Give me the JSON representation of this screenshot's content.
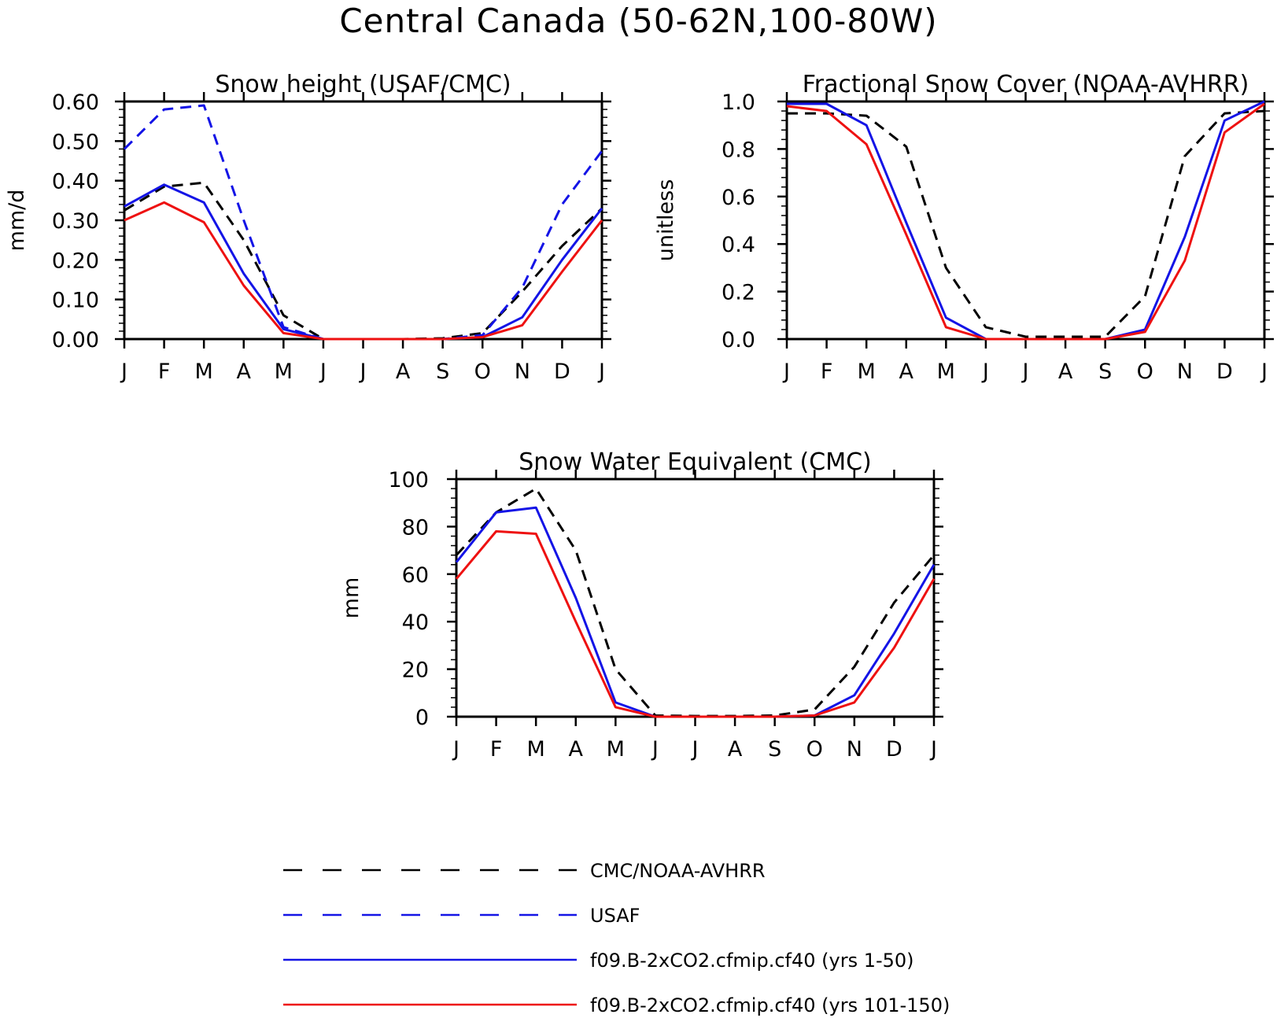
{
  "page_title": "Central Canada (50-62N,100-80W)",
  "months": [
    "J",
    "F",
    "M",
    "A",
    "M",
    "J",
    "J",
    "A",
    "S",
    "O",
    "N",
    "D",
    "J"
  ],
  "colors": {
    "obs": "#000000",
    "usaf": "#1414e6",
    "yrs1_50": "#1414e6",
    "yrs101_150": "#ee1111"
  },
  "legend": [
    {
      "key": "obs",
      "label": "CMC/NOAA-AVHRR",
      "style": "dashed"
    },
    {
      "key": "usaf",
      "label": "USAF",
      "style": "dashed"
    },
    {
      "key": "yrs1_50",
      "label": "f09.B-2xCO2.cfmip.cf40 (yrs 1-50)",
      "style": "solid"
    },
    {
      "key": "yrs101_150",
      "label": "f09.B-2xCO2.cfmip.cf40 (yrs 101-150)",
      "style": "solid"
    }
  ],
  "chart_data": [
    {
      "type": "line",
      "title": "Snow height (USAF/CMC)",
      "ylabel": "mm/d",
      "ylim": [
        0,
        0.6
      ],
      "yticks": [
        "0.00",
        "0.10",
        "0.20",
        "0.30",
        "0.40",
        "0.50",
        "0.60"
      ],
      "x": [
        "J",
        "F",
        "M",
        "A",
        "M",
        "J",
        "J",
        "A",
        "S",
        "O",
        "N",
        "D",
        "J"
      ],
      "series": [
        {
          "key": "obs",
          "style": "dashed",
          "values": [
            0.325,
            0.385,
            0.395,
            0.25,
            0.06,
            0.0,
            0.0,
            0.0,
            0.002,
            0.015,
            0.12,
            0.235,
            0.33
          ]
        },
        {
          "key": "usaf",
          "style": "dashed",
          "values": [
            0.48,
            0.58,
            0.59,
            0.3,
            0.03,
            0.0,
            0.0,
            0.0,
            0.0,
            0.01,
            0.13,
            0.34,
            0.475
          ]
        },
        {
          "key": "yrs1_50",
          "style": "solid",
          "values": [
            0.335,
            0.39,
            0.345,
            0.165,
            0.025,
            0.0,
            0.0,
            0.0,
            0.0,
            0.005,
            0.055,
            0.2,
            0.33
          ]
        },
        {
          "key": "yrs101_150",
          "style": "solid",
          "values": [
            0.3,
            0.345,
            0.295,
            0.135,
            0.015,
            0.0,
            0.0,
            0.0,
            0.0,
            0.005,
            0.035,
            0.17,
            0.3
          ]
        }
      ]
    },
    {
      "type": "line",
      "title": "Fractional Snow Cover (NOAA-AVHRR)",
      "ylabel": "unitless",
      "ylim": [
        0,
        1.0
      ],
      "yticks": [
        "0.0",
        "0.2",
        "0.4",
        "0.6",
        "0.8",
        "1.0"
      ],
      "x": [
        "J",
        "F",
        "M",
        "A",
        "M",
        "J",
        "J",
        "A",
        "S",
        "O",
        "N",
        "D",
        "J"
      ],
      "series": [
        {
          "key": "obs",
          "style": "dashed",
          "values": [
            0.95,
            0.95,
            0.94,
            0.81,
            0.3,
            0.05,
            0.01,
            0.01,
            0.01,
            0.18,
            0.77,
            0.95,
            0.96
          ]
        },
        {
          "key": "yrs1_50",
          "style": "solid",
          "values": [
            0.99,
            0.99,
            0.9,
            0.49,
            0.09,
            0.0,
            0.0,
            0.0,
            0.0,
            0.04,
            0.43,
            0.92,
            1.0
          ]
        },
        {
          "key": "yrs101_150",
          "style": "solid",
          "values": [
            0.98,
            0.96,
            0.82,
            0.44,
            0.05,
            0.0,
            0.0,
            0.0,
            0.0,
            0.03,
            0.33,
            0.87,
            0.99
          ]
        }
      ]
    },
    {
      "type": "line",
      "title": "Snow Water Equivalent (CMC)",
      "ylabel": "mm",
      "ylim": [
        0,
        100
      ],
      "yticks": [
        "0",
        "20",
        "40",
        "60",
        "80",
        "100"
      ],
      "x": [
        "J",
        "F",
        "M",
        "A",
        "M",
        "J",
        "J",
        "A",
        "S",
        "O",
        "N",
        "D",
        "J"
      ],
      "series": [
        {
          "key": "obs",
          "style": "dashed",
          "values": [
            68,
            86,
            96,
            70,
            20,
            0.5,
            0.3,
            0.3,
            0.5,
            3,
            21,
            48,
            68
          ]
        },
        {
          "key": "yrs1_50",
          "style": "solid",
          "values": [
            65,
            86,
            88,
            50,
            6,
            0,
            0,
            0,
            0,
            0.5,
            9,
            35,
            64
          ]
        },
        {
          "key": "yrs101_150",
          "style": "solid",
          "values": [
            58,
            78,
            77,
            40,
            4,
            0,
            0,
            0,
            0,
            0.5,
            6,
            29,
            58
          ]
        }
      ]
    }
  ]
}
